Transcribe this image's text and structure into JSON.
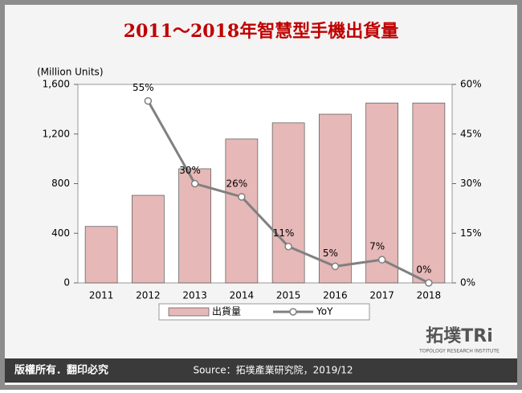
{
  "chart_data": {
    "type": "bar",
    "title": "2011～2018年智慧型手機出貨量",
    "y_axis_label": "(Million Units)",
    "categories": [
      "2011",
      "2012",
      "2013",
      "2014",
      "2015",
      "2016",
      "2017",
      "2018"
    ],
    "series": [
      {
        "name": "出貨量",
        "type": "bar",
        "color": "#e6b8b7",
        "values": [
          455,
          706,
          920,
          1160,
          1290,
          1360,
          1450,
          1450
        ]
      },
      {
        "name": "YoY",
        "type": "line",
        "axis": "y2",
        "color": "#808080",
        "values": [
          null,
          55,
          30,
          26,
          11,
          5,
          7,
          0
        ],
        "value_labels": [
          null,
          "55%",
          "30%",
          "26%",
          "11%",
          "5%",
          "7%",
          "0%"
        ]
      }
    ],
    "ylim": [
      0,
      1600
    ],
    "yticks": [
      0,
      400,
      800,
      {
        "value": 1200,
        "label": "1,200"
      },
      {
        "value": 1600,
        "label": "1,600"
      }
    ],
    "y2lim": [
      0,
      60
    ],
    "y2ticks": [
      {
        "value": 0,
        "label": "0%"
      },
      {
        "value": 15,
        "label": "15%"
      },
      {
        "value": 30,
        "label": "30%"
      },
      {
        "value": 45,
        "label": "45%"
      },
      {
        "value": 60,
        "label": "60%"
      }
    ],
    "legend": "bottom"
  },
  "footer": {
    "copyright": "版權所有．翻印必究",
    "source": "Source：拓墣產業研究院，2019/12",
    "logo": "拓墣TRi",
    "logo_subtitle": "TOPOLOGY RESEARCH INSTITUTE"
  }
}
